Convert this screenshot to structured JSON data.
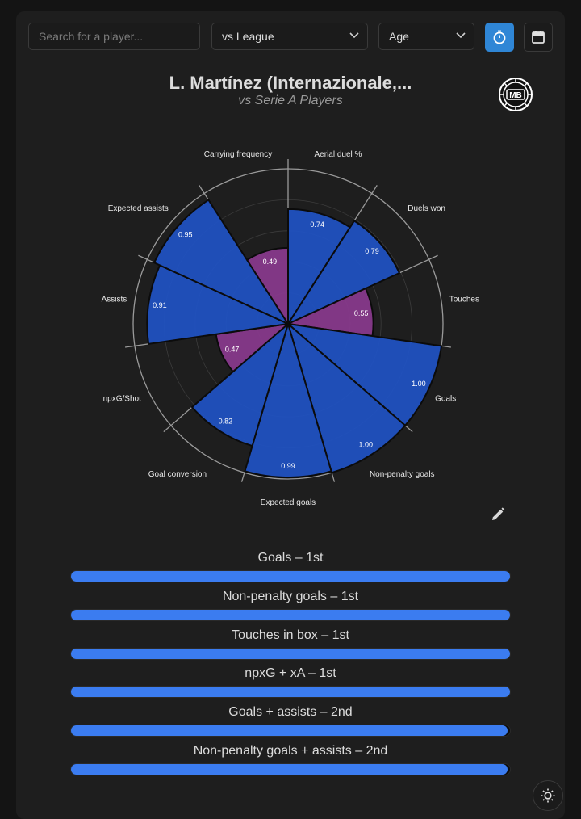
{
  "search": {
    "placeholder": "Search for a player..."
  },
  "filters": {
    "comparison": "vs League",
    "age": "Age"
  },
  "header": {
    "title": "L. Martínez (Internazionale,...",
    "subtitle": "vs Serie A Players",
    "logo_text": "MB"
  },
  "colors": {
    "accent": "#2f86d6",
    "bar_blue": "#3b7cf0",
    "petal_blue": "#1f52c4",
    "petal_pink": "#8a3a8e"
  },
  "chart_data": {
    "type": "polar-bar",
    "title": "L. Martínez (Internazionale,...",
    "subtitle": "vs Serie A Players",
    "radial_range": [
      0,
      1
    ],
    "categories": [
      "Aerial duel %",
      "Duels won",
      "Touches",
      "Goals",
      "Non-penalty goals",
      "Expected goals",
      "Goal conversion",
      "npxG/Shot",
      "Assists",
      "Expected assists",
      "Carrying frequency"
    ],
    "values": [
      0.74,
      0.79,
      0.55,
      1.0,
      1.0,
      0.99,
      0.82,
      0.47,
      0.91,
      0.95,
      0.49
    ],
    "value_labels": [
      "0.74",
      "0.79",
      "0.55",
      "1.00",
      "1.00",
      "0.99",
      "0.82",
      "0.47",
      "0.91",
      "0.95",
      "0.49"
    ]
  },
  "rankings": [
    {
      "label": "Goals – 1st",
      "fill": 1.0
    },
    {
      "label": "Non-penalty goals – 1st",
      "fill": 1.0
    },
    {
      "label": "Touches in box – 1st",
      "fill": 1.0
    },
    {
      "label": "npxG + xA – 1st",
      "fill": 1.0
    },
    {
      "label": "Goals + assists – 2nd",
      "fill": 0.995
    },
    {
      "label": "Non-penalty goals + assists – 2nd",
      "fill": 0.995
    }
  ],
  "icons": {
    "clock": "stopwatch-icon",
    "calendar": "calendar-icon",
    "edit": "pencil-icon",
    "theme": "sun-icon"
  }
}
